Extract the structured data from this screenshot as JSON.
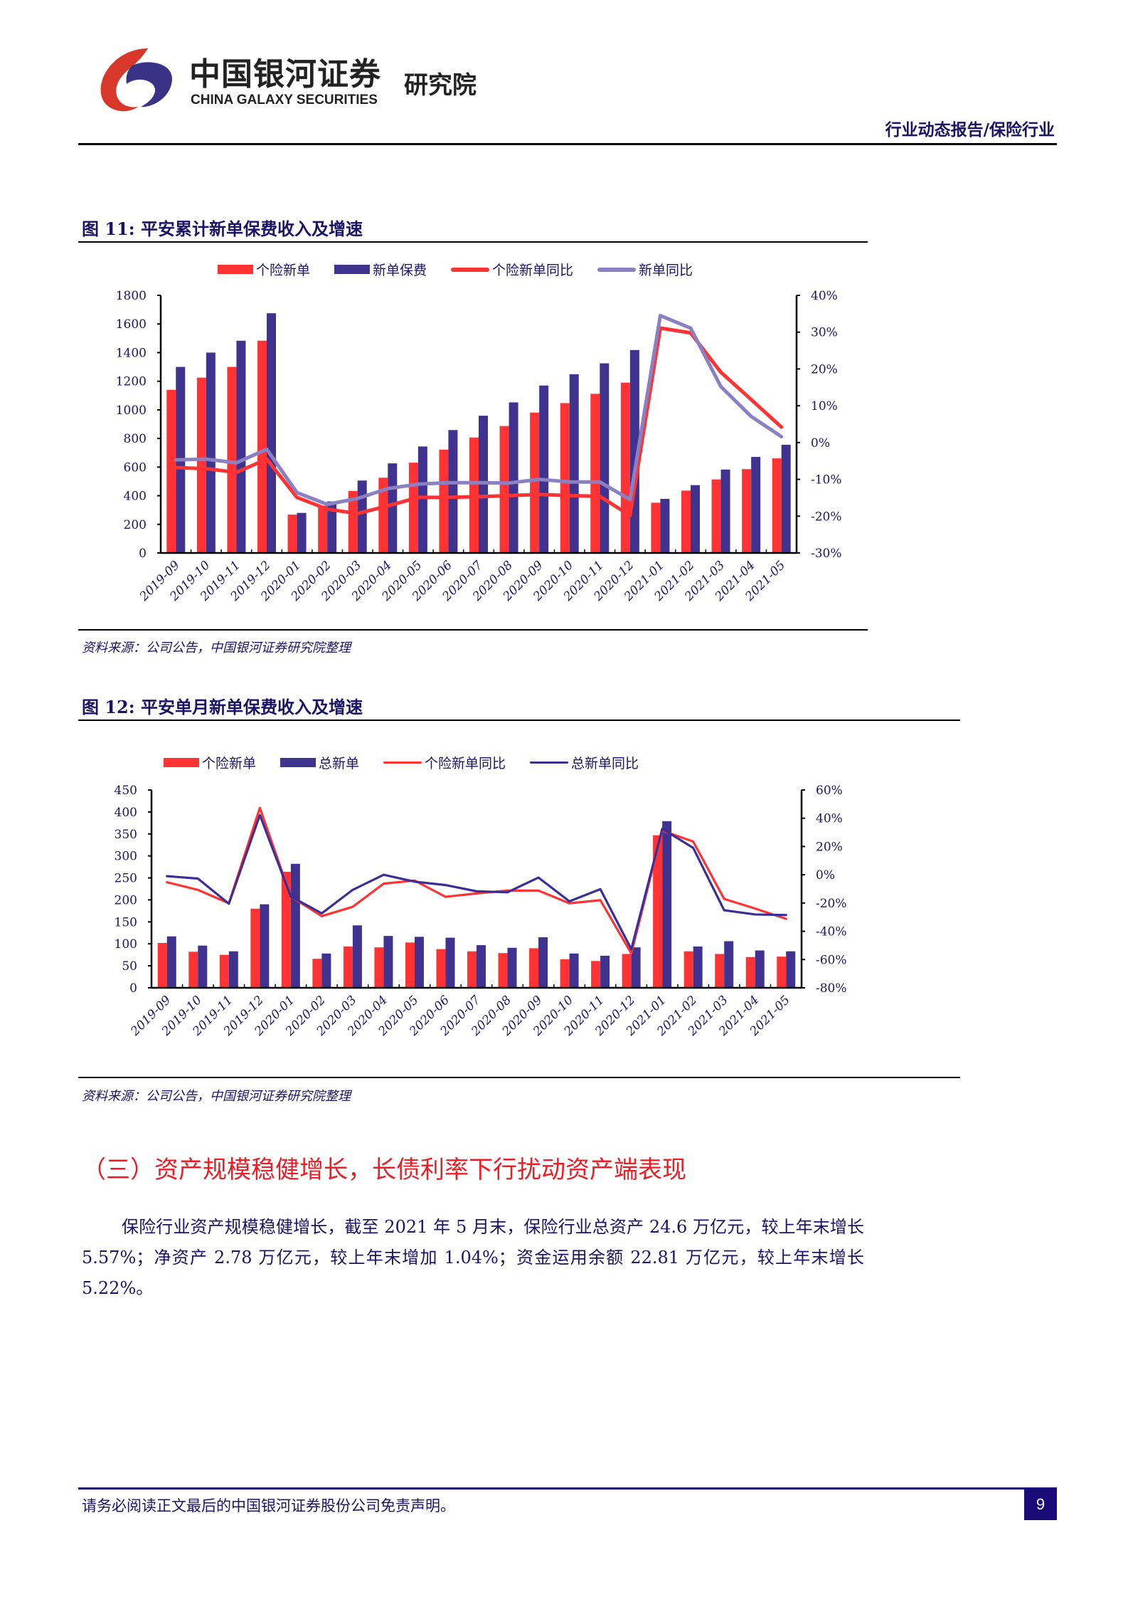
{
  "header": {
    "logo_cn": "中国银河证券",
    "logo_en": "CHINA GALAXY SECURITIES",
    "logo_institute": "研究院",
    "report_type": "行业动态报告/保险行业"
  },
  "figures": [
    {
      "title": "图 11:  平安累计新单保费收入及增速",
      "legend": [
        "个险新单",
        "新单保费",
        "个险新单同比",
        "新单同比"
      ],
      "source": "资料来源：公司公告，中国银河证券研究院整理"
    },
    {
      "title": "图 12:  平安单月新单保费收入及增速",
      "legend": [
        "个险新单",
        "总新单",
        "个险新单同比",
        "总新单同比"
      ],
      "source": "资料来源：公司公告，中国银河证券研究院整理"
    }
  ],
  "colors": {
    "red": "#FF3333",
    "navy": "#40338F",
    "lavender": "#8A80C2",
    "line_blue": "#3B2F96"
  },
  "chart_data": [
    {
      "type": "bar",
      "title": "平安累计新单保费收入及增速",
      "categories": [
        "2019-09",
        "2019-10",
        "2019-11",
        "2019-12",
        "2020-01",
        "2020-02",
        "2020-03",
        "2020-04",
        "2020-05",
        "2020-06",
        "2020-07",
        "2020-08",
        "2020-09",
        "2020-10",
        "2020-11",
        "2020-12",
        "2021-01",
        "2021-02",
        "2021-03",
        "2021-04",
        "2021-05"
      ],
      "ylim": [
        0,
        1800
      ],
      "yticks": [
        "0",
        "200",
        "400",
        "600",
        "800",
        "1000",
        "1200",
        "1400",
        "1600",
        "1800"
      ],
      "y2lim": [
        -30,
        40
      ],
      "y2ticks": [
        "-30%",
        "-20%",
        "-10%",
        "0%",
        "10%",
        "20%",
        "30%",
        "40%"
      ],
      "legend_position": "top",
      "series": [
        {
          "name": "个险新单",
          "kind": "bar",
          "axis": "left",
          "color": "#FF3333",
          "values": [
            1140,
            1225,
            1300,
            1483,
            268,
            330,
            433,
            526,
            631,
            722,
            807,
            887,
            981,
            1047,
            1112,
            1190,
            351,
            436,
            514,
            586,
            661
          ]
        },
        {
          "name": "新单保费",
          "kind": "bar",
          "axis": "left",
          "color": "#40338F",
          "values": [
            1300,
            1400,
            1483,
            1675,
            280,
            360,
            506,
            626,
            744,
            859,
            959,
            1052,
            1170,
            1249,
            1325,
            1418,
            378,
            474,
            583,
            671,
            756
          ]
        },
        {
          "name": "个险新单同比",
          "kind": "line",
          "axis": "right",
          "color": "#FF3333",
          "values": [
            -6.8,
            -7.1,
            -8.1,
            -4.5,
            -14.9,
            -18.1,
            -19.3,
            -17.2,
            -14.9,
            -14.9,
            -14.7,
            -14.4,
            -14.1,
            -14.4,
            -14.6,
            -19.8,
            31.1,
            29.8,
            19.1,
            11.7,
            4.2
          ]
        },
        {
          "name": "新单同比",
          "kind": "line",
          "axis": "right",
          "color": "#8A80C2",
          "values": [
            -4.7,
            -4.5,
            -5.5,
            -1.8,
            -13.6,
            -16.8,
            -15.2,
            -12.5,
            -11.3,
            -10.9,
            -10.9,
            -11.0,
            -10.0,
            -10.7,
            -10.7,
            -15.5,
            34.5,
            31.1,
            15.2,
            7.1,
            1.6
          ]
        }
      ]
    },
    {
      "type": "bar",
      "title": "平安单月新单保费收入及增速",
      "categories": [
        "2019-09",
        "2019-10",
        "2019-11",
        "2019-12",
        "2020-01",
        "2020-02",
        "2020-03",
        "2020-04",
        "2020-05",
        "2020-06",
        "2020-07",
        "2020-08",
        "2020-09",
        "2020-10",
        "2020-11",
        "2020-12",
        "2021-01",
        "2021-02",
        "2021-03",
        "2021-04",
        "2021-05"
      ],
      "ylim": [
        0,
        450
      ],
      "yticks": [
        "0",
        "50",
        "100",
        "150",
        "200",
        "250",
        "300",
        "350",
        "400",
        "450"
      ],
      "y2lim": [
        -80,
        60
      ],
      "y2ticks": [
        "-80%",
        "-60%",
        "-40%",
        "-20%",
        "0%",
        "20%",
        "40%",
        "60%"
      ],
      "legend_position": "top",
      "series": [
        {
          "name": "个险新单",
          "kind": "bar",
          "axis": "left",
          "color": "#FF3333",
          "values": [
            102,
            82,
            75,
            180,
            264,
            66,
            94,
            92,
            103,
            88,
            83,
            79,
            90,
            65,
            61,
            77,
            347,
            83,
            77,
            70,
            71
          ]
        },
        {
          "name": "总新单",
          "kind": "bar",
          "axis": "left",
          "color": "#40338F",
          "values": [
            117,
            96,
            83,
            190,
            282,
            78,
            142,
            118,
            116,
            114,
            97,
            91,
            115,
            78,
            73,
            92,
            379,
            94,
            106,
            85,
            83
          ]
        },
        {
          "name": "个险新单同比",
          "kind": "line",
          "axis": "right",
          "color": "#FF3333",
          "values": [
            -5.3,
            -10.7,
            -20.2,
            47.3,
            -15.4,
            -29.3,
            -22.7,
            -6.3,
            -4.1,
            -15.6,
            -13.2,
            -11.2,
            -11.2,
            -20.2,
            -18.0,
            -55.6,
            31.2,
            23.5,
            -17.1,
            -23.9,
            -31.2
          ]
        },
        {
          "name": "总新单同比",
          "kind": "line",
          "axis": "right",
          "color": "#3B2F96",
          "values": [
            -1.0,
            -2.7,
            -20.5,
            42.2,
            -15.4,
            -27.3,
            -10.7,
            0.0,
            -4.9,
            -7.3,
            -11.7,
            -12.4,
            -2.0,
            -18.8,
            -10.2,
            -52.7,
            32.5,
            19.0,
            -25.1,
            -28.1,
            -28.5
          ]
        }
      ]
    }
  ],
  "section": {
    "heading": "（三）资产规模稳健增长，长债利率下行扰动资产端表现",
    "paragraph": "保险行业资产规模稳健增长，截至 2021 年 5 月末，保险行业总资产 24.6 万亿元，较上年末增长 5.57%；净资产 2.78 万亿元，较上年末增加 1.04%；资金运用余额 22.81 万亿元，较上年末增长 5.22%。"
  },
  "footer": {
    "disclaimer": "请务必阅读正文最后的中国银河证券股份公司免责声明。",
    "page_number": "9"
  }
}
